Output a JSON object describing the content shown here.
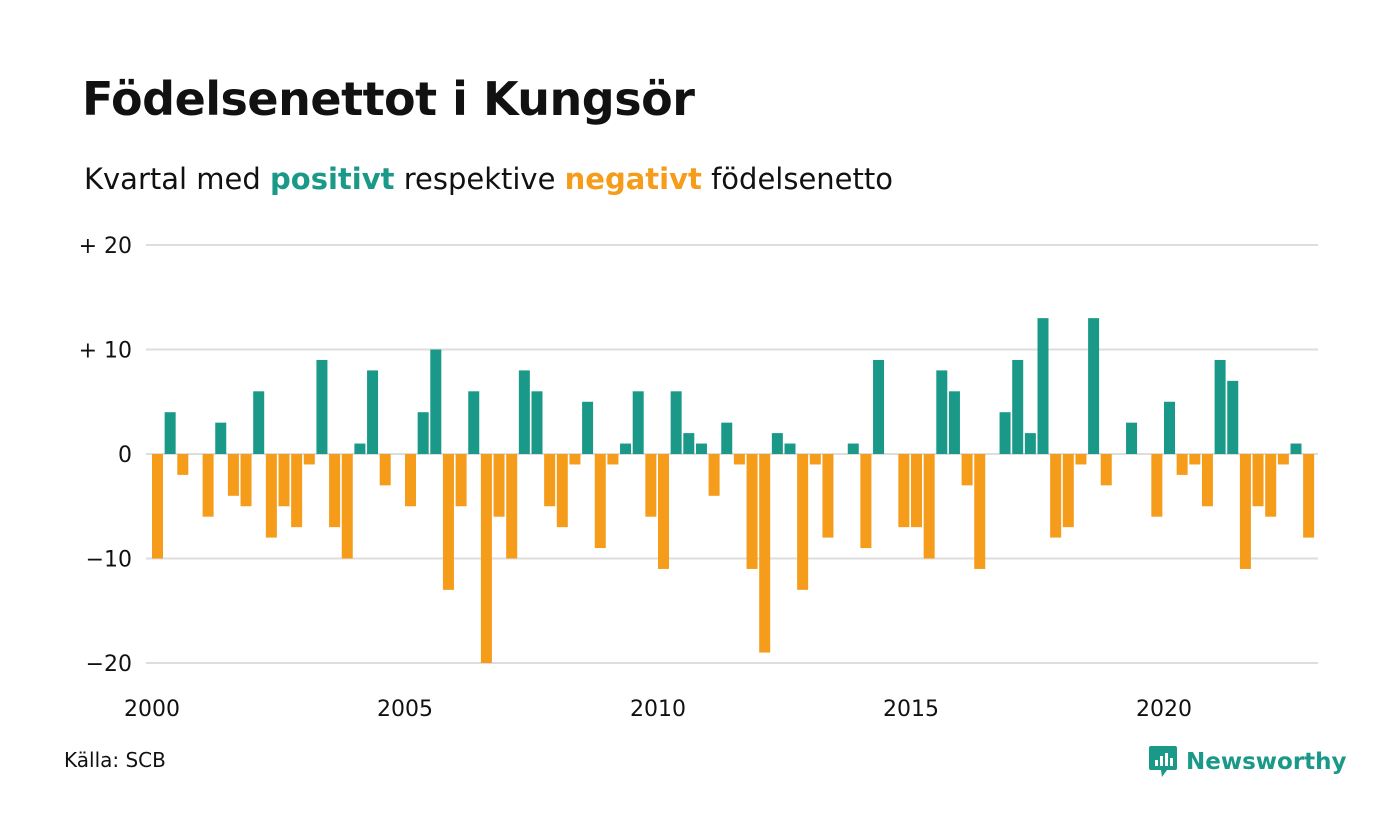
{
  "header": {
    "title": "Födelsenettot i Kungsör",
    "subtitle_prefix": "Kvartal med ",
    "subtitle_positive": "positivt",
    "subtitle_middle": " respektive ",
    "subtitle_negative": "negativt",
    "subtitle_suffix": " födelsenetto"
  },
  "footer": {
    "source": "Källa: SCB",
    "brand": "Newsworthy",
    "brand_icon": "newsworthy-logo-icon"
  },
  "colors": {
    "positive": "#1a9988",
    "negative": "#f59c1a",
    "grid": "#dddddd",
    "text": "#111111"
  },
  "chart_data": {
    "type": "bar",
    "title": "Födelsenettot i Kungsör",
    "subtitle": "Kvartal med positivt respektive negativt födelsenetto",
    "xlabel": "",
    "ylabel": "",
    "ylim": [
      -20,
      20
    ],
    "yticks": [
      {
        "value": 20,
        "label": "+ 20"
      },
      {
        "value": 10,
        "label": "+ 10"
      },
      {
        "value": 0,
        "label": "0"
      },
      {
        "value": -10,
        "label": "−10"
      },
      {
        "value": -20,
        "label": "−20"
      }
    ],
    "xticks": [
      {
        "value": 2000,
        "label": "2000"
      },
      {
        "value": 2005,
        "label": "2005"
      },
      {
        "value": 2010,
        "label": "2010"
      },
      {
        "value": 2015,
        "label": "2015"
      },
      {
        "value": 2020,
        "label": "2020"
      }
    ],
    "start_year": 2000,
    "quarters_per_year": 4,
    "grid": true,
    "values": [
      -10,
      4,
      -2,
      0,
      -6,
      3,
      -4,
      -5,
      6,
      -8,
      -5,
      -7,
      -1,
      9,
      -7,
      -10,
      1,
      8,
      -3,
      0,
      -5,
      4,
      10,
      -13,
      -5,
      6,
      -20,
      -6,
      -10,
      8,
      6,
      -5,
      -7,
      -1,
      5,
      -9,
      -1,
      1,
      6,
      -6,
      -11,
      6,
      2,
      1,
      -4,
      3,
      -1,
      -11,
      -19,
      2,
      1,
      -13,
      -1,
      -8,
      0,
      1,
      -9,
      9,
      0,
      -7,
      -7,
      -10,
      8,
      6,
      -3,
      -11,
      0,
      4,
      9,
      2,
      13,
      -8,
      -7,
      -1,
      13,
      -3,
      0,
      3,
      0,
      -6,
      5,
      -2,
      -1,
      -5,
      9,
      7,
      -11,
      -5,
      -6,
      -1,
      1,
      -8
    ]
  }
}
